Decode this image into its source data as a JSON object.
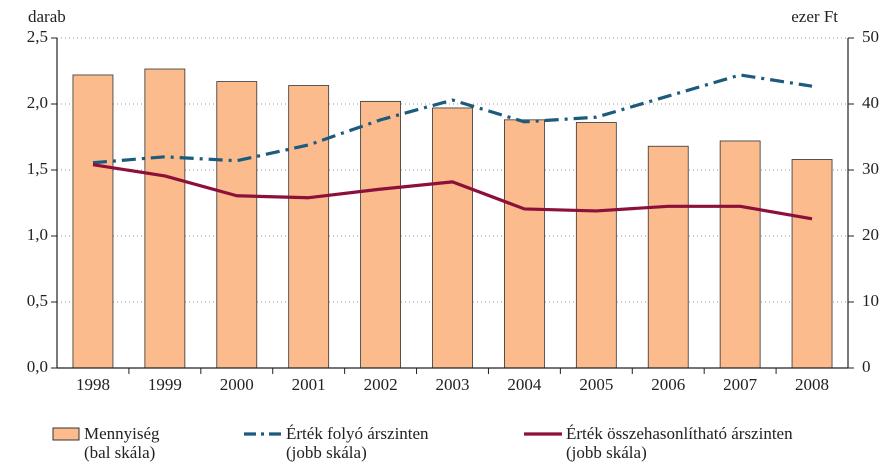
{
  "chart_data": {
    "type": "bar_line",
    "ylabel": "darab",
    "y2label": "ezer Ft",
    "categories": [
      "1998",
      "1999",
      "2000",
      "2001",
      "2002",
      "2003",
      "2004",
      "2005",
      "2006",
      "2007",
      "2008"
    ],
    "ylim": [
      0,
      2.5
    ],
    "yticks": [
      {
        "value": 0,
        "label": "0,0"
      },
      {
        "value": 0.5,
        "label": "0,5"
      },
      {
        "value": 1,
        "label": "1,0"
      },
      {
        "value": 1.5,
        "label": "1,5"
      },
      {
        "value": 2,
        "label": "2,0"
      },
      {
        "value": 2.5,
        "label": "2,5"
      }
    ],
    "y2lim": [
      0,
      50
    ],
    "y2ticks": [
      0,
      10,
      20,
      30,
      40,
      50
    ],
    "grid": true,
    "series": [
      {
        "name": "Mennyiség\n(bal skála)",
        "kind": "bar",
        "color": "#fbbb8c",
        "values": [
          2.22,
          2.265,
          2.17,
          2.14,
          2.02,
          1.97,
          1.88,
          1.86,
          1.68,
          1.72,
          1.58
        ]
      },
      {
        "name": "Érték folyó árszinten\n(jobb skála)",
        "kind": "dashdot",
        "axis": "y2",
        "color": "#1c5b7d",
        "values": [
          31.1,
          32.0,
          31.4,
          33.8,
          37.6,
          40.6,
          37.3,
          38.0,
          41.2,
          44.4,
          42.7
        ]
      },
      {
        "name": "Érték összehasonlítható árszinten\n(jobb skála)",
        "kind": "line",
        "axis": "y2",
        "color": "#8c1039",
        "values": [
          30.8,
          29.1,
          26.1,
          25.8,
          27.1,
          28.2,
          24.1,
          23.8,
          24.5,
          24.5,
          22.6
        ]
      }
    ]
  }
}
